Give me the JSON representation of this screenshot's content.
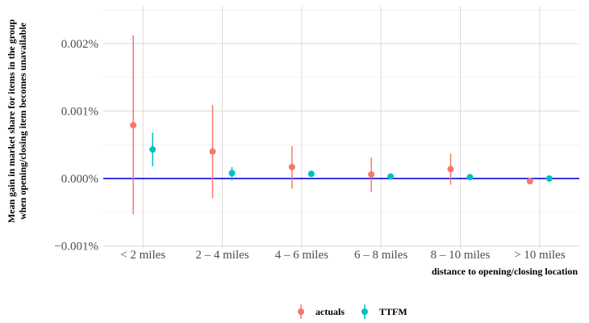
{
  "chart_data": {
    "type": "scatter",
    "subtype": "point-range",
    "categories": [
      "< 2 miles",
      "2 – 4 miles",
      "4 – 6 miles",
      "6 – 8 miles",
      "8 – 10 miles",
      "> 10 miles"
    ],
    "xlabel": "distance to opening/closing location",
    "ylabel_lines": [
      "Mean gain in market share for items in the group",
      "when opening/closing item becomes unavailable"
    ],
    "yticks": [
      -0.001,
      0.0,
      0.001,
      0.002
    ],
    "ytick_labels": [
      "−0.001%",
      "0.000%",
      "0.001%",
      "0.002%"
    ],
    "ylim": [
      -0.00104,
      0.00255
    ],
    "reference_line": {
      "y": 0.0,
      "color": "#1a1adb"
    },
    "grid": true,
    "legend_position": "bottom",
    "series": [
      {
        "name": "actuals",
        "color": "#f8766d",
        "values": [
          0.00079,
          0.0004,
          0.00017,
          6e-05,
          0.00014,
          -4e-05
        ],
        "lower": [
          -0.00053,
          -0.00029,
          -0.00015,
          -0.0002,
          -9e-05,
          -6e-05
        ],
        "upper": [
          0.00212,
          0.00109,
          0.00048,
          0.00031,
          0.00037,
          -2e-05
        ]
      },
      {
        "name": "TTFM",
        "color": "#00bfc4",
        "values": [
          0.00043,
          8e-05,
          7e-05,
          3e-05,
          2e-05,
          0.0
        ],
        "lower": [
          0.00018,
          -3e-05,
          5e-05,
          2e-05,
          1e-05,
          -1e-05
        ],
        "upper": [
          0.00068,
          0.00017,
          9e-05,
          4e-05,
          3e-05,
          1e-05
        ]
      }
    ]
  }
}
